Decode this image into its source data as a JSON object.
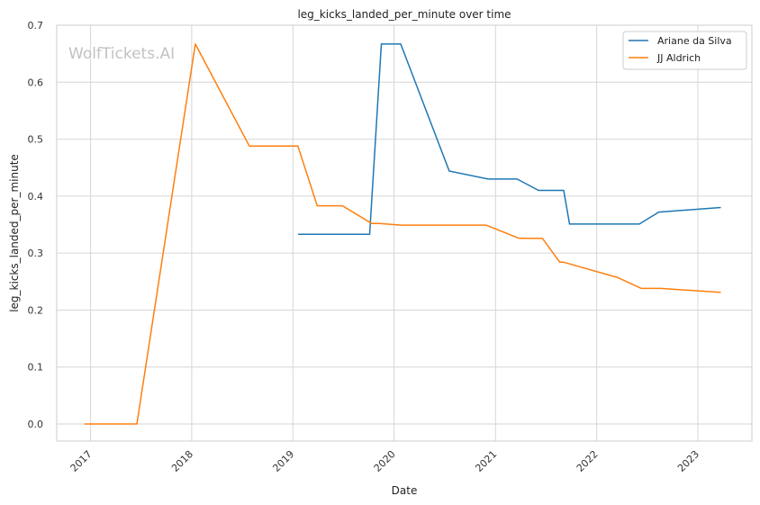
{
  "chart_data": {
    "type": "line",
    "title": "leg_kicks_landed_per_minute over time",
    "xlabel": "Date",
    "ylabel": "leg_kicks_landed_per_minute",
    "watermark": "WolfTickets.AI",
    "ylim": [
      -0.03,
      0.7
    ],
    "xlim": [
      "2016-09-01",
      "2023-07-15"
    ],
    "y_ticks": [
      "0.0",
      "0.1",
      "0.2",
      "0.3",
      "0.4",
      "0.5",
      "0.6",
      "0.7"
    ],
    "x_ticks": [
      "2017",
      "2018",
      "2019",
      "2020",
      "2021",
      "2022",
      "2023"
    ],
    "grid": true,
    "legend": "top-right",
    "series": [
      {
        "name": "Ariane da Silva",
        "color": "#1f77b4",
        "points": [
          [
            "2019-01-20",
            0.333
          ],
          [
            "2019-10-05",
            0.333
          ],
          [
            "2019-11-16",
            0.667
          ],
          [
            "2020-01-25",
            0.667
          ],
          [
            "2020-07-18",
            0.444
          ],
          [
            "2020-12-05",
            0.43
          ],
          [
            "2021-03-20",
            0.43
          ],
          [
            "2021-06-05",
            0.41
          ],
          [
            "2021-09-04",
            0.41
          ],
          [
            "2021-09-25",
            0.351
          ],
          [
            "2022-06-04",
            0.351
          ],
          [
            "2022-08-13",
            0.372
          ],
          [
            "2023-03-25",
            0.38
          ]
        ]
      },
      {
        "name": "JJ Aldrich",
        "color": "#ff7f0e",
        "points": [
          [
            "2016-12-10",
            0.0
          ],
          [
            "2017-06-17",
            0.0
          ],
          [
            "2018-01-14",
            0.667
          ],
          [
            "2018-07-28",
            0.488
          ],
          [
            "2019-01-19",
            0.488
          ],
          [
            "2019-03-30",
            0.383
          ],
          [
            "2019-06-29",
            0.383
          ],
          [
            "2019-10-12",
            0.352
          ],
          [
            "2019-11-09",
            0.352
          ],
          [
            "2020-01-25",
            0.349
          ],
          [
            "2020-11-28",
            0.349
          ],
          [
            "2021-03-27",
            0.326
          ],
          [
            "2021-06-19",
            0.326
          ],
          [
            "2021-08-21",
            0.284
          ],
          [
            "2021-09-04",
            0.284
          ],
          [
            "2022-03-19",
            0.257
          ],
          [
            "2022-06-11",
            0.238
          ],
          [
            "2022-08-20",
            0.238
          ],
          [
            "2023-03-25",
            0.231
          ]
        ]
      }
    ]
  }
}
